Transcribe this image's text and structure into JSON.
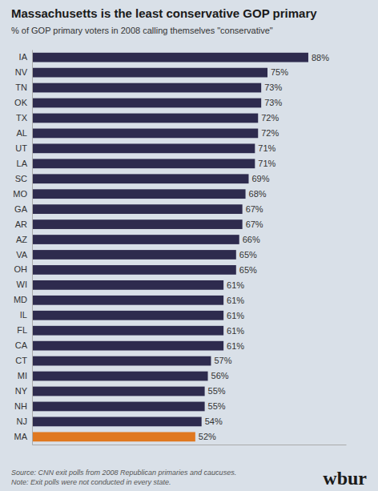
{
  "chart_data": {
    "type": "bar",
    "orientation": "horizontal",
    "title": "Massachusetts is the least conservative GOP primary",
    "subtitle": "% of GOP primary voters in 2008 calling themselves \"conservative\"",
    "annotations": [
      "Source: CNN exit polls from 2008 Republican primaries and caucuses.",
      "Note: Exit polls were not conducted in every state.",
      "wbur"
    ],
    "categories": [
      "IA",
      "NV",
      "TN",
      "OK",
      "TX",
      "AL",
      "UT",
      "LA",
      "SC",
      "MO",
      "GA",
      "AR",
      "AZ",
      "VA",
      "OH",
      "WI",
      "MD",
      "IL",
      "FL",
      "CA",
      "CT",
      "MI",
      "NY",
      "NH",
      "NJ",
      "MA"
    ],
    "values": [
      88,
      75,
      73,
      73,
      72,
      72,
      71,
      71,
      69,
      68,
      67,
      67,
      66,
      65,
      65,
      61,
      61,
      61,
      61,
      61,
      57,
      56,
      55,
      55,
      54,
      52
    ],
    "value_labels": [
      "88%",
      "75%",
      "73%",
      "73%",
      "72%",
      "72%",
      "71%",
      "71%",
      "69%",
      "68%",
      "67%",
      "67%",
      "66%",
      "65%",
      "65%",
      "61%",
      "61%",
      "61%",
      "61%",
      "61%",
      "57%",
      "56%",
      "55%",
      "55%",
      "54%",
      "52%"
    ],
    "colors": [
      "#2e2b4e",
      "#2e2b4e",
      "#2e2b4e",
      "#2e2b4e",
      "#2e2b4e",
      "#2e2b4e",
      "#2e2b4e",
      "#2e2b4e",
      "#2e2b4e",
      "#2e2b4e",
      "#2e2b4e",
      "#2e2b4e",
      "#2e2b4e",
      "#2e2b4e",
      "#2e2b4e",
      "#2e2b4e",
      "#2e2b4e",
      "#2e2b4e",
      "#2e2b4e",
      "#2e2b4e",
      "#2e2b4e",
      "#2e2b4e",
      "#2e2b4e",
      "#2e2b4e",
      "#2e2b4e",
      "#e07820"
    ],
    "xlim": [
      0,
      100
    ],
    "data_labels": true,
    "grid": false,
    "tick_labels": "y"
  }
}
